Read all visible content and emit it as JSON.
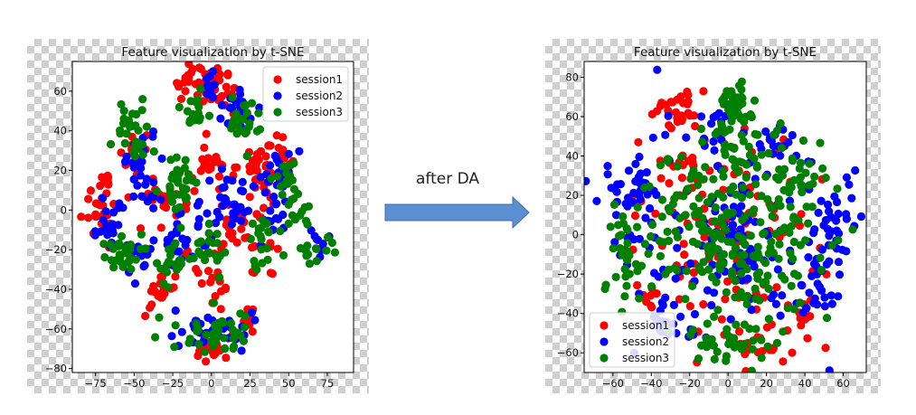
{
  "annotation": {
    "label": "after DA"
  },
  "colors": {
    "session1": "#ff0000",
    "session2": "#0000ff",
    "session3": "#008000",
    "arrow_fill": "#5b8fd1",
    "arrow_stroke": "#3f6fa8"
  },
  "chart_data": [
    {
      "type": "scatter",
      "title": "Feature visualization by t-SNE",
      "xlim": [
        -90,
        92
      ],
      "ylim": [
        -82,
        75
      ],
      "xticks": [
        -75,
        -50,
        -25,
        0,
        25,
        50,
        75
      ],
      "yticks": [
        -80,
        -60,
        -40,
        -20,
        0,
        20,
        40,
        60
      ],
      "legend_position": "top-right",
      "grid": false,
      "series": [
        {
          "name": "session1",
          "clusters": [
            {
              "cx": -8,
              "cy": 65,
              "sx": 10,
              "sy": 5,
              "n": 35
            },
            {
              "cx": 5,
              "cy": 60,
              "sx": 7,
              "sy": 5,
              "n": 20
            },
            {
              "cx": -70,
              "cy": 5,
              "sx": 7,
              "sy": 9,
              "n": 30
            },
            {
              "cx": -50,
              "cy": 30,
              "sx": 6,
              "sy": 6,
              "n": 12
            },
            {
              "cx": -25,
              "cy": 5,
              "sx": 8,
              "sy": 7,
              "n": 25
            },
            {
              "cx": 0,
              "cy": 22,
              "sx": 6,
              "sy": 6,
              "n": 18
            },
            {
              "cx": 27,
              "cy": 18,
              "sx": 8,
              "sy": 8,
              "n": 30
            },
            {
              "cx": 40,
              "cy": 25,
              "sx": 6,
              "sy": 5,
              "n": 20
            },
            {
              "cx": -35,
              "cy": -42,
              "sx": 4,
              "sy": 4,
              "n": 18
            },
            {
              "cx": 5,
              "cy": -40,
              "sx": 4,
              "sy": 8,
              "n": 14
            },
            {
              "cx": 0,
              "cy": -70,
              "sx": 8,
              "sy": 4,
              "n": 18
            },
            {
              "cx": 20,
              "cy": -55,
              "sx": 5,
              "sy": 4,
              "n": 10
            },
            {
              "cx": 15,
              "cy": -15,
              "sx": 6,
              "sy": 8,
              "n": 15
            },
            {
              "cx": 35,
              "cy": -25,
              "sx": 5,
              "sy": 5,
              "n": 10
            },
            {
              "cx": -15,
              "cy": -28,
              "sx": 6,
              "sy": 6,
              "n": 10
            }
          ]
        },
        {
          "name": "session2",
          "clusters": [
            {
              "cx": 18,
              "cy": 50,
              "sx": 7,
              "sy": 6,
              "n": 25
            },
            {
              "cx": 0,
              "cy": 65,
              "sx": 5,
              "sy": 4,
              "n": 10
            },
            {
              "cx": -65,
              "cy": -8,
              "sx": 7,
              "sy": 7,
              "n": 25
            },
            {
              "cx": -45,
              "cy": 25,
              "sx": 6,
              "sy": 7,
              "n": 20
            },
            {
              "cx": -40,
              "cy": 5,
              "sx": 5,
              "sy": 5,
              "n": 8
            },
            {
              "cx": 10,
              "cy": 5,
              "sx": 8,
              "sy": 10,
              "n": 35
            },
            {
              "cx": 45,
              "cy": 20,
              "sx": 6,
              "sy": 6,
              "n": 18
            },
            {
              "cx": -20,
              "cy": -15,
              "sx": 8,
              "sy": 6,
              "n": 25
            },
            {
              "cx": 40,
              "cy": -5,
              "sx": 5,
              "sy": 8,
              "n": 15
            },
            {
              "cx": 0,
              "cy": -60,
              "sx": 12,
              "sy": 5,
              "n": 35
            },
            {
              "cx": 70,
              "cy": -15,
              "sx": 4,
              "sy": 4,
              "n": 10
            },
            {
              "cx": -45,
              "cy": -25,
              "sx": 5,
              "sy": 5,
              "n": 12
            }
          ]
        },
        {
          "name": "session3",
          "clusters": [
            {
              "cx": 20,
              "cy": 45,
              "sx": 6,
              "sy": 6,
              "n": 25
            },
            {
              "cx": -12,
              "cy": 50,
              "sx": 5,
              "sy": 6,
              "n": 18
            },
            {
              "cx": -50,
              "cy": 38,
              "sx": 6,
              "sy": 9,
              "n": 30
            },
            {
              "cx": -20,
              "cy": 12,
              "sx": 6,
              "sy": 7,
              "n": 35
            },
            {
              "cx": 45,
              "cy": 15,
              "sx": 5,
              "sy": 6,
              "n": 15
            },
            {
              "cx": 55,
              "cy": 0,
              "sx": 5,
              "sy": 5,
              "n": 12
            },
            {
              "cx": -55,
              "cy": -20,
              "sx": 7,
              "sy": 6,
              "n": 25
            },
            {
              "cx": -25,
              "cy": -25,
              "sx": 6,
              "sy": 6,
              "n": 20
            },
            {
              "cx": 0,
              "cy": -20,
              "sx": 6,
              "sy": 8,
              "n": 22
            },
            {
              "cx": 35,
              "cy": -15,
              "sx": 6,
              "sy": 8,
              "n": 20
            },
            {
              "cx": 5,
              "cy": -62,
              "sx": 13,
              "sy": 5,
              "n": 40
            },
            {
              "cx": 70,
              "cy": -20,
              "sx": 6,
              "sy": 4,
              "n": 12
            }
          ]
        }
      ]
    },
    {
      "type": "scatter",
      "title": "Feature visualization by t-SNE",
      "xlim": [
        -75,
        72
      ],
      "ylim": [
        -70,
        88
      ],
      "xticks": [
        -60,
        -40,
        -20,
        0,
        20,
        40,
        60
      ],
      "yticks": [
        -60,
        -40,
        -20,
        0,
        20,
        40,
        60,
        80
      ],
      "legend_position": "bottom-left",
      "grid": false,
      "series": [
        {
          "name": "session1",
          "clusters": [
            {
              "cx": -25,
              "cy": 64,
              "sx": 5,
              "sy": 6,
              "n": 30
            },
            {
              "cx": -20,
              "cy": 35,
              "sx": 8,
              "sy": 6,
              "n": 15
            },
            {
              "cx": 0,
              "cy": 0,
              "sx": 25,
              "sy": 28,
              "n": 120
            },
            {
              "cx": 40,
              "cy": -40,
              "sx": 5,
              "sy": 5,
              "n": 10
            },
            {
              "cx": 15,
              "cy": -60,
              "sx": 8,
              "sy": 4,
              "n": 15
            },
            {
              "cx": -40,
              "cy": -30,
              "sx": 5,
              "sy": 6,
              "n": 10
            }
          ]
        },
        {
          "name": "session2",
          "clusters": [
            {
              "cx": -50,
              "cy": 25,
              "sx": 8,
              "sy": 8,
              "n": 30
            },
            {
              "cx": -12,
              "cy": 55,
              "sx": 5,
              "sy": 6,
              "n": 12
            },
            {
              "cx": 25,
              "cy": 45,
              "sx": 8,
              "sy": 5,
              "n": 15
            },
            {
              "cx": 55,
              "cy": 5,
              "sx": 6,
              "sy": 10,
              "n": 25
            },
            {
              "cx": 50,
              "cy": -25,
              "sx": 6,
              "sy": 8,
              "n": 20
            },
            {
              "cx": -30,
              "cy": -45,
              "sx": 8,
              "sy": 6,
              "n": 20
            },
            {
              "cx": 0,
              "cy": 0,
              "sx": 28,
              "sy": 28,
              "n": 150
            }
          ]
        },
        {
          "name": "session3",
          "clusters": [
            {
              "cx": 0,
              "cy": 0,
              "sx": 24,
              "sy": 26,
              "n": 240
            },
            {
              "cx": 3,
              "cy": 70,
              "sx": 4,
              "sy": 4,
              "n": 22
            },
            {
              "cx": 0,
              "cy": 50,
              "sx": 7,
              "sy": 10,
              "n": 30
            },
            {
              "cx": -55,
              "cy": -10,
              "sx": 8,
              "sy": 12,
              "n": 30
            },
            {
              "cx": 35,
              "cy": 30,
              "sx": 10,
              "sy": 8,
              "n": 25
            },
            {
              "cx": 0,
              "cy": -55,
              "sx": 12,
              "sy": 6,
              "n": 30
            }
          ]
        }
      ]
    }
  ]
}
